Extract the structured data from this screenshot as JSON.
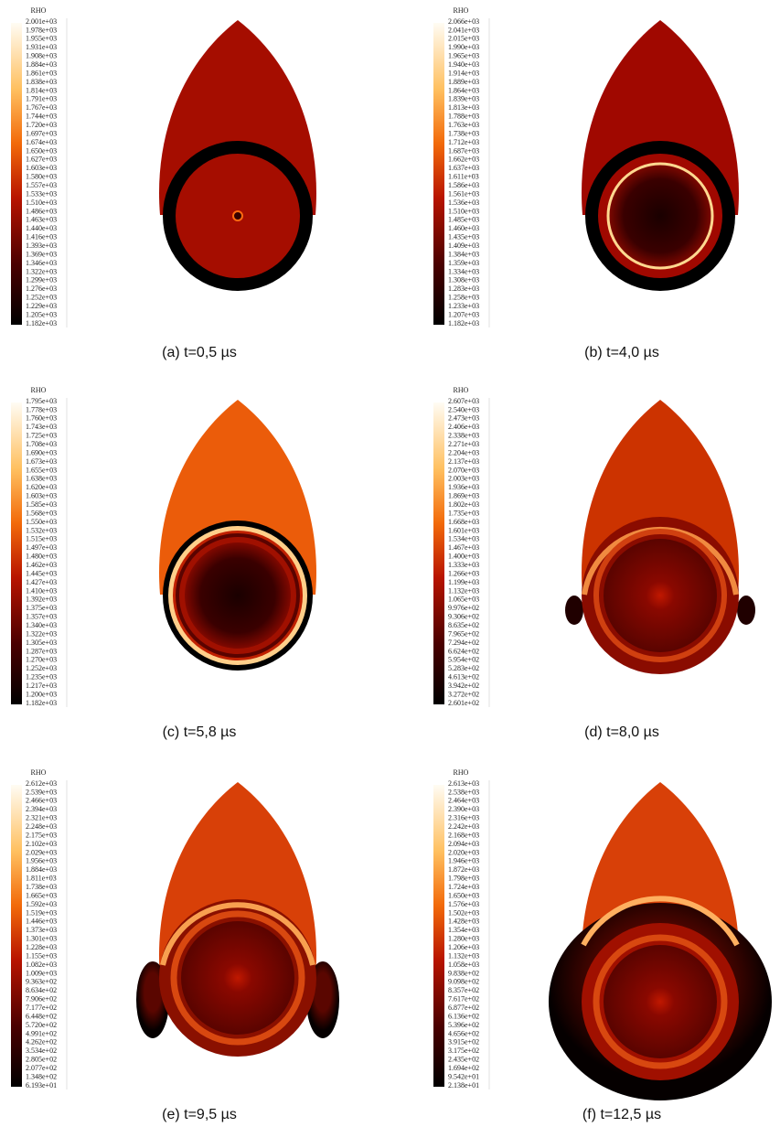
{
  "panels": [
    {
      "colorbar_title": "RHO",
      "caption": "(a) t=0,5 µs",
      "ticks": [
        "2.001e+03",
        "1.978e+03",
        "1.955e+03",
        "1.931e+03",
        "1.908e+03",
        "1.884e+03",
        "1.861e+03",
        "1.838e+03",
        "1.814e+03",
        "1.791e+03",
        "1.767e+03",
        "1.744e+03",
        "1.720e+03",
        "1.697e+03",
        "1.674e+03",
        "1.650e+03",
        "1.627e+03",
        "1.603e+03",
        "1.580e+03",
        "1.557e+03",
        "1.533e+03",
        "1.510e+03",
        "1.486e+03",
        "1.463e+03",
        "1.440e+03",
        "1.416e+03",
        "1.393e+03",
        "1.369e+03",
        "1.346e+03",
        "1.322e+03",
        "1.299e+03",
        "1.276e+03",
        "1.252e+03",
        "1.229e+03",
        "1.205e+03",
        "1.182e+03"
      ]
    },
    {
      "colorbar_title": "RHO",
      "caption": "(b) t=4,0 µs",
      "ticks": [
        "2.066e+03",
        "2.041e+03",
        "2.015e+03",
        "1.990e+03",
        "1.965e+03",
        "1.940e+03",
        "1.914e+03",
        "1.889e+03",
        "1.864e+03",
        "1.839e+03",
        "1.813e+03",
        "1.788e+03",
        "1.763e+03",
        "1.738e+03",
        "1.712e+03",
        "1.687e+03",
        "1.662e+03",
        "1.637e+03",
        "1.611e+03",
        "1.586e+03",
        "1.561e+03",
        "1.536e+03",
        "1.510e+03",
        "1.485e+03",
        "1.460e+03",
        "1.435e+03",
        "1.409e+03",
        "1.384e+03",
        "1.359e+03",
        "1.334e+03",
        "1.308e+03",
        "1.283e+03",
        "1.258e+03",
        "1.233e+03",
        "1.207e+03",
        "1.182e+03"
      ]
    },
    {
      "colorbar_title": "RHO",
      "caption": "(c) t=5,8 µs",
      "ticks": [
        "1.795e+03",
        "1.778e+03",
        "1.760e+03",
        "1.743e+03",
        "1.725e+03",
        "1.708e+03",
        "1.690e+03",
        "1.673e+03",
        "1.655e+03",
        "1.638e+03",
        "1.620e+03",
        "1.603e+03",
        "1.585e+03",
        "1.568e+03",
        "1.550e+03",
        "1.532e+03",
        "1.515e+03",
        "1.497e+03",
        "1.480e+03",
        "1.462e+03",
        "1.445e+03",
        "1.427e+03",
        "1.410e+03",
        "1.392e+03",
        "1.375e+03",
        "1.357e+03",
        "1.340e+03",
        "1.322e+03",
        "1.305e+03",
        "1.287e+03",
        "1.270e+03",
        "1.252e+03",
        "1.235e+03",
        "1.217e+03",
        "1.200e+03",
        "1.182e+03"
      ]
    },
    {
      "colorbar_title": "RHO",
      "caption": "(d) t=8,0 µs",
      "ticks": [
        "2.607e+03",
        "2.540e+03",
        "2.473e+03",
        "2.406e+03",
        "2.338e+03",
        "2.271e+03",
        "2.204e+03",
        "2.137e+03",
        "2.070e+03",
        "2.003e+03",
        "1.936e+03",
        "1.869e+03",
        "1.802e+03",
        "1.735e+03",
        "1.668e+03",
        "1.601e+03",
        "1.534e+03",
        "1.467e+03",
        "1.400e+03",
        "1.333e+03",
        "1.266e+03",
        "1.199e+03",
        "1.132e+03",
        "1.065e+03",
        "9.976e+02",
        "9.306e+02",
        "8.635e+02",
        "7.965e+02",
        "7.294e+02",
        "6.624e+02",
        "5.954e+02",
        "5.283e+02",
        "4.613e+02",
        "3.942e+02",
        "3.272e+02",
        "2.601e+02"
      ]
    },
    {
      "colorbar_title": "RHO",
      "caption": "(e) t=9,5 µs",
      "ticks": [
        "2.612e+03",
        "2.539e+03",
        "2.466e+03",
        "2.394e+03",
        "2.321e+03",
        "2.248e+03",
        "2.175e+03",
        "2.102e+03",
        "2.029e+03",
        "1.956e+03",
        "1.884e+03",
        "1.811e+03",
        "1.738e+03",
        "1.665e+03",
        "1.592e+03",
        "1.519e+03",
        "1.446e+03",
        "1.373e+03",
        "1.301e+03",
        "1.228e+03",
        "1.155e+03",
        "1.082e+03",
        "1.009e+03",
        "9.363e+02",
        "8.634e+02",
        "7.906e+02",
        "7.177e+02",
        "6.448e+02",
        "5.720e+02",
        "4.991e+02",
        "4.262e+02",
        "3.534e+02",
        "2.805e+02",
        "2.077e+02",
        "1.348e+02",
        "6.193e+01"
      ]
    },
    {
      "colorbar_title": "RHO",
      "caption": "(f) t=12,5 µs",
      "ticks": [
        "2.613e+03",
        "2.538e+03",
        "2.464e+03",
        "2.390e+03",
        "2.316e+03",
        "2.242e+03",
        "2.168e+03",
        "2.094e+03",
        "2.020e+03",
        "1.946e+03",
        "1.872e+03",
        "1.798e+03",
        "1.724e+03",
        "1.650e+03",
        "1.576e+03",
        "1.502e+03",
        "1.428e+03",
        "1.354e+03",
        "1.280e+03",
        "1.206e+03",
        "1.132e+03",
        "1.058e+03",
        "9.838e+02",
        "9.098e+02",
        "8.357e+02",
        "7.617e+02",
        "6.877e+02",
        "6.136e+02",
        "5.396e+02",
        "4.656e+02",
        "3.915e+02",
        "3.175e+02",
        "2.435e+02",
        "1.694e+02",
        "9.542e+01",
        "2.138e+01"
      ]
    }
  ]
}
